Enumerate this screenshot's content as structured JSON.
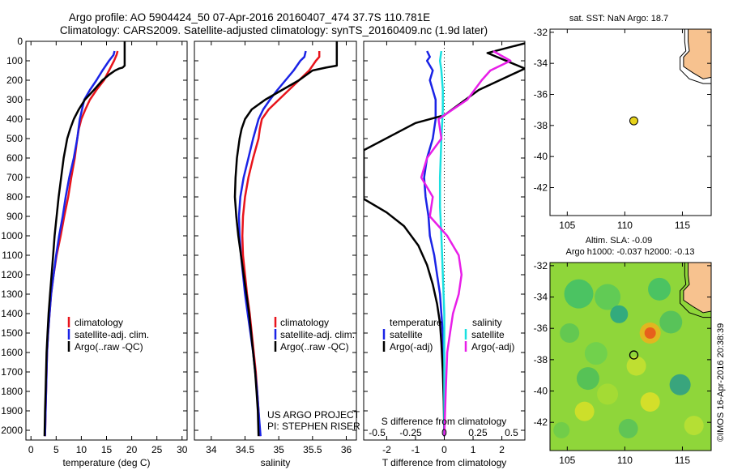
{
  "header": {
    "title_line1": "Argo profile: AO 5904424_50 07-Apr-2016 20160407_474 37.7S 110.781E",
    "title_line2": "Climatology: CARS2009. Satellite-adjusted climatology: synTS_20160409.nc (1.9d later)"
  },
  "colors": {
    "climatology": "#e8141c",
    "satellite": "#1a23e6",
    "argo": "#000000",
    "sat_salinity": "#19e0e0",
    "argo_salinity_diff": "#e81ee8",
    "land": "#f7c28f"
  },
  "chart_data": [
    {
      "type": "line",
      "id": "temperature",
      "xlabel": "temperature (deg C)",
      "xlim": [
        -1,
        31
      ],
      "ylim": [
        2050,
        0
      ],
      "xticks": [
        "0",
        "5",
        "10",
        "15",
        "20",
        "25",
        "30"
      ],
      "yticks": [
        "0",
        "100",
        "200",
        "300",
        "400",
        "500",
        "600",
        "700",
        "800",
        "900",
        "1000",
        "1100",
        "1200",
        "1300",
        "1400",
        "1500",
        "1600",
        "1700",
        "1800",
        "1900",
        "2000"
      ],
      "legend": [
        "climatology",
        "satellite-adj. clim.",
        "Argo(..raw -QC)"
      ],
      "series": [
        {
          "key": "climatology",
          "color": "#e8141c",
          "points": [
            [
              17.2,
              50
            ],
            [
              17,
              70
            ],
            [
              16.5,
              100
            ],
            [
              15.5,
              150
            ],
            [
              14.5,
              200
            ],
            [
              13,
              250
            ],
            [
              11.7,
              300
            ],
            [
              10.8,
              350
            ],
            [
              10,
              400
            ],
            [
              9.5,
              450
            ],
            [
              9.2,
              500
            ],
            [
              8.7,
              600
            ],
            [
              8,
              700
            ],
            [
              7.4,
              800
            ],
            [
              6.6,
              900
            ],
            [
              5.9,
              1000
            ],
            [
              5.1,
              1100
            ],
            [
              4.5,
              1200
            ],
            [
              4,
              1300
            ],
            [
              3.7,
              1400
            ],
            [
              3.4,
              1500
            ],
            [
              3.2,
              1600
            ],
            [
              3.1,
              1700
            ],
            [
              3,
              1800
            ],
            [
              2.9,
              1900
            ],
            [
              2.8,
              2030
            ]
          ]
        },
        {
          "key": "satellite",
          "color": "#1a23e6",
          "points": [
            [
              16.6,
              50
            ],
            [
              16.4,
              70
            ],
            [
              15.5,
              100
            ],
            [
              14.2,
              150
            ],
            [
              13,
              200
            ],
            [
              11.7,
              250
            ],
            [
              10.6,
              300
            ],
            [
              9.7,
              400
            ],
            [
              9.2,
              500
            ],
            [
              8.5,
              600
            ],
            [
              7.6,
              700
            ],
            [
              6.9,
              800
            ],
            [
              6.3,
              900
            ],
            [
              5.6,
              1000
            ],
            [
              5,
              1100
            ],
            [
              4.5,
              1200
            ],
            [
              4,
              1300
            ],
            [
              3.7,
              1400
            ],
            [
              3.4,
              1500
            ],
            [
              3.2,
              1600
            ],
            [
              3.1,
              1700
            ],
            [
              3,
              1800
            ],
            [
              2.9,
              1900
            ],
            [
              2.8,
              2030
            ]
          ]
        },
        {
          "key": "argo",
          "color": "#000000",
          "points": [
            [
              18.6,
              0
            ],
            [
              18.6,
              125
            ],
            [
              18.2,
              135
            ],
            [
              17.5,
              140
            ],
            [
              16.7,
              150
            ],
            [
              15.6,
              170
            ],
            [
              14.2,
              200
            ],
            [
              12.5,
              250
            ],
            [
              10.7,
              300
            ],
            [
              9.5,
              350
            ],
            [
              8.5,
              400
            ],
            [
              7.8,
              450
            ],
            [
              7.2,
              500
            ],
            [
              6.5,
              600
            ],
            [
              6,
              700
            ],
            [
              5.5,
              800
            ],
            [
              5.1,
              900
            ],
            [
              4.7,
              1000
            ],
            [
              4.4,
              1100
            ],
            [
              4.1,
              1200
            ],
            [
              3.8,
              1300
            ],
            [
              3.5,
              1400
            ],
            [
              3.3,
              1500
            ],
            [
              3.1,
              1600
            ],
            [
              3,
              1700
            ],
            [
              2.9,
              1800
            ],
            [
              2.8,
              1900
            ],
            [
              2.7,
              2030
            ]
          ]
        }
      ]
    },
    {
      "type": "line",
      "id": "salinity",
      "xlabel": "salinity",
      "xlim": [
        33.75,
        36.15
      ],
      "ylim": [
        2050,
        0
      ],
      "xticks": [
        "34",
        "34.5",
        "35",
        "35.5",
        "36"
      ],
      "legend": [
        "climatology",
        "satellite-adj. clim.",
        "Argo(..raw -QC)"
      ],
      "series": [
        {
          "key": "climatology",
          "color": "#e8141c",
          "points": [
            [
              35.6,
              50
            ],
            [
              35.6,
              80
            ],
            [
              35.55,
              100
            ],
            [
              35.45,
              150
            ],
            [
              35.3,
              200
            ],
            [
              35.15,
              250
            ],
            [
              35,
              300
            ],
            [
              34.85,
              350
            ],
            [
              34.75,
              400
            ],
            [
              34.72,
              450
            ],
            [
              34.7,
              500
            ],
            [
              34.62,
              600
            ],
            [
              34.55,
              700
            ],
            [
              34.5,
              800
            ],
            [
              34.47,
              900
            ],
            [
              34.46,
              1000
            ],
            [
              34.47,
              1100
            ],
            [
              34.5,
              1200
            ],
            [
              34.53,
              1300
            ],
            [
              34.57,
              1400
            ],
            [
              34.6,
              1500
            ],
            [
              34.63,
              1600
            ],
            [
              34.66,
              1700
            ],
            [
              34.68,
              1800
            ],
            [
              34.7,
              1900
            ],
            [
              34.72,
              2030
            ]
          ]
        },
        {
          "key": "satellite",
          "color": "#1a23e6",
          "points": [
            [
              35.4,
              50
            ],
            [
              35.38,
              80
            ],
            [
              35.32,
              100
            ],
            [
              35.22,
              150
            ],
            [
              35.1,
              200
            ],
            [
              34.98,
              250
            ],
            [
              34.87,
              300
            ],
            [
              34.77,
              350
            ],
            [
              34.7,
              400
            ],
            [
              34.62,
              500
            ],
            [
              34.55,
              600
            ],
            [
              34.48,
              700
            ],
            [
              34.43,
              800
            ],
            [
              34.41,
              900
            ],
            [
              34.42,
              1000
            ],
            [
              34.44,
              1100
            ],
            [
              34.47,
              1200
            ],
            [
              34.5,
              1300
            ],
            [
              34.54,
              1400
            ],
            [
              34.58,
              1500
            ],
            [
              34.62,
              1600
            ],
            [
              34.65,
              1700
            ],
            [
              34.68,
              1800
            ],
            [
              34.7,
              1900
            ],
            [
              34.73,
              2030
            ]
          ]
        },
        {
          "key": "argo",
          "color": "#000000",
          "points": [
            [
              35.86,
              0
            ],
            [
              35.86,
              125
            ],
            [
              35.7,
              135
            ],
            [
              35.5,
              150
            ],
            [
              35.3,
              200
            ],
            [
              35.05,
              250
            ],
            [
              34.8,
              300
            ],
            [
              34.6,
              350
            ],
            [
              34.5,
              400
            ],
            [
              34.45,
              450
            ],
            [
              34.42,
              500
            ],
            [
              34.38,
              600
            ],
            [
              34.36,
              700
            ],
            [
              34.35,
              800
            ],
            [
              34.37,
              900
            ],
            [
              34.4,
              1000
            ],
            [
              34.44,
              1100
            ],
            [
              34.48,
              1200
            ],
            [
              34.52,
              1300
            ],
            [
              34.56,
              1400
            ],
            [
              34.59,
              1500
            ],
            [
              34.62,
              1600
            ],
            [
              34.65,
              1700
            ],
            [
              34.67,
              1800
            ],
            [
              34.69,
              1900
            ],
            [
              34.7,
              2030
            ]
          ]
        }
      ],
      "annotations": [
        "US ARGO PROJECT",
        "PI: STEPHEN RISER"
      ]
    },
    {
      "type": "line",
      "id": "difference",
      "xlabel": "T difference from climatology",
      "xlabel_top": "S difference from climatology",
      "xlim": [
        -2.8,
        2.8
      ],
      "ylim": [
        2050,
        0
      ],
      "xticks": [
        "-2",
        "-1",
        "0",
        "1",
        "2"
      ],
      "xticks_top": [
        "-0.5",
        "-0.25",
        "0",
        "0.25",
        "0.5"
      ],
      "legend_headers": [
        "temperature",
        "salinity"
      ],
      "legend": [
        "satellite",
        "Argo(-adj)",
        "satellite",
        "Argo(-adj)"
      ],
      "series": [
        {
          "key": "temp_sat",
          "color": "#1a23e6",
          "points": [
            [
              -0.6,
              50
            ],
            [
              -0.5,
              80
            ],
            [
              -0.6,
              100
            ],
            [
              -0.4,
              150
            ],
            [
              -0.5,
              200
            ],
            [
              -0.3,
              300
            ],
            [
              -0.3,
              400
            ],
            [
              -0.4,
              500
            ],
            [
              -0.6,
              600
            ],
            [
              -0.7,
              700
            ],
            [
              -0.65,
              800
            ],
            [
              -0.55,
              900
            ],
            [
              -0.5,
              1000
            ],
            [
              -0.35,
              1100
            ],
            [
              -0.25,
              1200
            ],
            [
              -0.15,
              1300
            ],
            [
              -0.1,
              1400
            ],
            [
              -0.05,
              1500
            ],
            [
              -0.02,
              1600
            ],
            [
              0,
              1800
            ],
            [
              0,
              2030
            ]
          ]
        },
        {
          "key": "temp_argo",
          "color": "#000000",
          "points": [
            [
              2.8,
              10
            ],
            [
              1.5,
              60
            ],
            [
              2.8,
              140
            ],
            [
              1.2,
              250
            ],
            [
              0,
              380
            ],
            [
              -1,
              420
            ],
            [
              -2.8,
              560
            ],
            [
              -2.8,
              810
            ],
            [
              -2,
              880
            ],
            [
              -1.4,
              950
            ],
            [
              -0.9,
              1050
            ],
            [
              -0.6,
              1150
            ],
            [
              -0.4,
              1250
            ],
            [
              -0.25,
              1350
            ],
            [
              -0.15,
              1450
            ],
            [
              -0.1,
              1550
            ],
            [
              -0.05,
              1700
            ],
            [
              -0.02,
              1850
            ],
            [
              0,
              2030
            ]
          ]
        },
        {
          "key": "sal_sat",
          "color": "#19e0e0",
          "points": [
            [
              -0.1,
              50
            ],
            [
              -0.15,
              100
            ],
            [
              -0.1,
              150
            ],
            [
              -0.05,
              250
            ],
            [
              -0.05,
              350
            ],
            [
              -0.1,
              500
            ],
            [
              -0.15,
              700
            ],
            [
              -0.15,
              850
            ],
            [
              -0.1,
              1000
            ],
            [
              -0.05,
              1200
            ],
            [
              0,
              1400
            ],
            [
              0,
              1700
            ],
            [
              0,
              2030
            ]
          ]
        },
        {
          "key": "sal_argo",
          "color": "#e81ee8",
          "points": [
            [
              1.7,
              50
            ],
            [
              2.3,
              100
            ],
            [
              1.6,
              150
            ],
            [
              1.3,
              200
            ],
            [
              0.8,
              300
            ],
            [
              -0.2,
              400
            ],
            [
              -0.1,
              500
            ],
            [
              -0.6,
              600
            ],
            [
              -0.8,
              700
            ],
            [
              -0.4,
              800
            ],
            [
              -0.5,
              900
            ],
            [
              0.1,
              1000
            ],
            [
              0.5,
              1100
            ],
            [
              0.6,
              1200
            ],
            [
              0.5,
              1300
            ],
            [
              0.3,
              1400
            ],
            [
              0.2,
              1500
            ],
            [
              0.1,
              1600
            ],
            [
              0.05,
              1800
            ],
            [
              0,
              2030
            ]
          ]
        }
      ]
    }
  ],
  "maps": {
    "sst_title": "sat. SST: NaN Argo: 18.7",
    "sla_title1": "Altim. SLA: -0.09",
    "sla_title2": "Argo h1000: -0.037 h2000: -0.13",
    "xticks": [
      "105",
      "110",
      "115"
    ],
    "yticks": [
      "-32",
      "-34",
      "-36",
      "-38",
      "-40",
      "-42"
    ],
    "xlim": [
      103.5,
      117.5
    ],
    "ylim": [
      -43.8,
      -31.8
    ],
    "argo_lon": 110.781,
    "argo_lat": -37.7
  },
  "credit": "©IMOS 16-Apr-2016 20:38:39"
}
